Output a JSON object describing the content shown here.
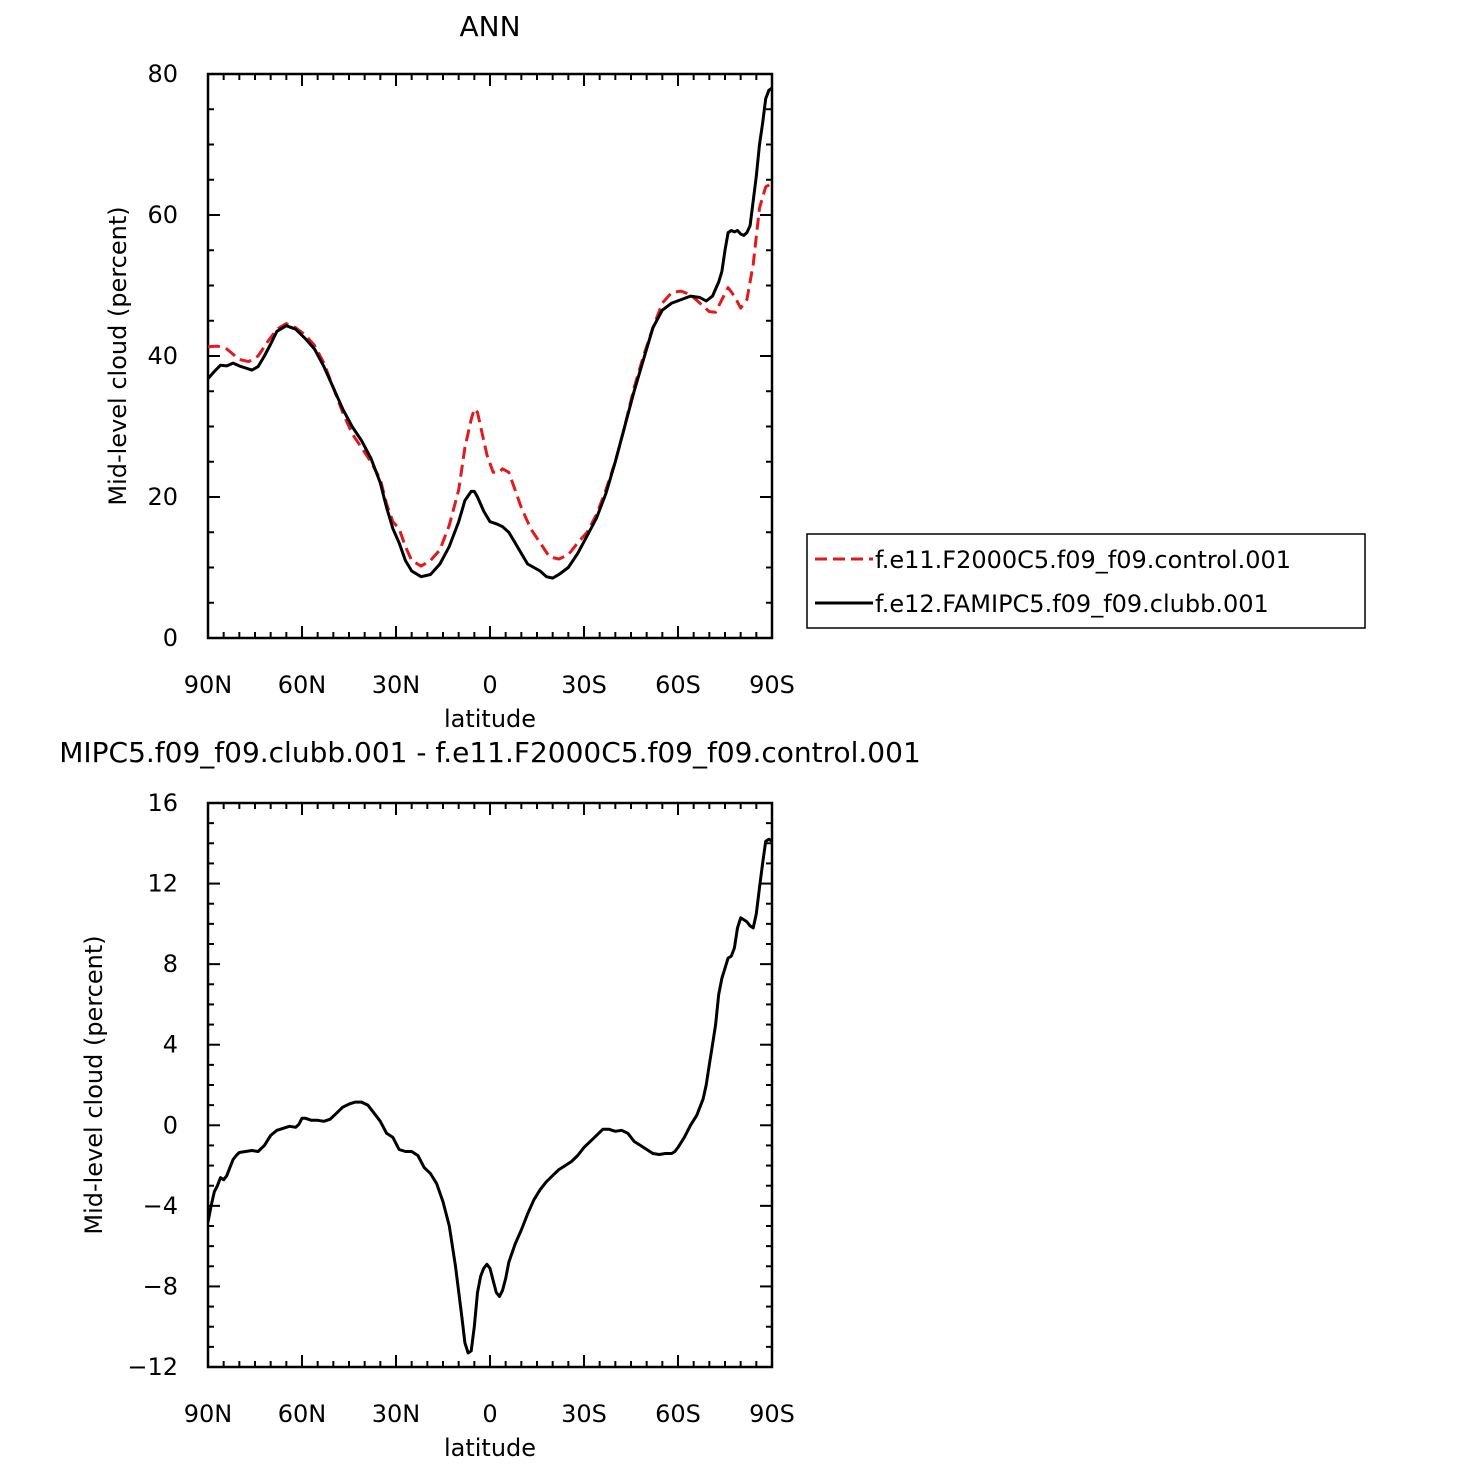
{
  "chart_data": [
    {
      "type": "line",
      "title": "ANN",
      "xlabel": "latitude",
      "ylabel": "Mid-level cloud (percent)",
      "x_tick_values": [
        -90,
        -60,
        -30,
        0,
        30,
        60,
        90
      ],
      "x_tick_labels": [
        "90N",
        "60N",
        "30N",
        "0",
        "30S",
        "60S",
        "90S"
      ],
      "xlim": [
        -90,
        90
      ],
      "ylim": [
        0,
        80
      ],
      "y_ticks": [
        0,
        20,
        40,
        60,
        80
      ],
      "y_tick_labels": [
        "0",
        "20",
        "40",
        "60",
        "80"
      ],
      "legend": "right",
      "grid": false,
      "series": [
        {
          "name": "f.e11.F2000C5.f09_f09.control.001",
          "color": "#e31a1c",
          "dash": "dashed",
          "points": [
            [
              -90,
              41.3
            ],
            [
              -87,
              41.4
            ],
            [
              -84,
              41
            ],
            [
              -80,
              39.5
            ],
            [
              -77,
              39.2
            ],
            [
              -74,
              40
            ],
            [
              -71,
              42
            ],
            [
              -68,
              43.8
            ],
            [
              -65,
              44.6
            ],
            [
              -62,
              44
            ],
            [
              -59,
              43
            ],
            [
              -56,
              41.5
            ],
            [
              -53,
              39
            ],
            [
              -50,
              35.5
            ],
            [
              -47,
              32
            ],
            [
              -44,
              29
            ],
            [
              -41,
              27
            ],
            [
              -38,
              25
            ],
            [
              -35,
              22.5
            ],
            [
              -33,
              19
            ],
            [
              -31,
              16.5
            ],
            [
              -29,
              15.5
            ],
            [
              -27,
              13
            ],
            [
              -25,
              11
            ],
            [
              -22,
              10.2
            ],
            [
              -19,
              11
            ],
            [
              -16,
              12.5
            ],
            [
              -13,
              16
            ],
            [
              -10,
              21
            ],
            [
              -8,
              27
            ],
            [
              -6,
              31
            ],
            [
              -5,
              32.5
            ],
            [
              -4,
              32
            ],
            [
              -3,
              30
            ],
            [
              -1,
              26
            ],
            [
              1,
              23.5
            ],
            [
              3,
              23.5
            ],
            [
              4,
              24
            ],
            [
              6,
              23.5
            ],
            [
              8,
              21
            ],
            [
              10,
              18.5
            ],
            [
              13,
              15.5
            ],
            [
              16,
              13.5
            ],
            [
              19,
              11.5
            ],
            [
              22,
              11.2
            ],
            [
              25,
              11.8
            ],
            [
              28,
              13.5
            ],
            [
              31,
              15
            ],
            [
              34,
              17.5
            ],
            [
              37,
              21
            ],
            [
              40,
              25
            ],
            [
              43,
              30
            ],
            [
              46,
              35.5
            ],
            [
              49,
              40
            ],
            [
              52,
              44
            ],
            [
              55,
              47.5
            ],
            [
              58,
              49
            ],
            [
              61,
              49.2
            ],
            [
              64,
              48.7
            ],
            [
              67,
              47.5
            ],
            [
              70,
              46.3
            ],
            [
              72,
              46.2
            ],
            [
              74,
              48
            ],
            [
              76,
              49.7
            ],
            [
              78,
              48.5
            ],
            [
              80,
              46.8
            ],
            [
              82,
              48
            ],
            [
              84,
              53
            ],
            [
              86,
              61
            ],
            [
              88,
              64
            ],
            [
              90,
              64.5
            ]
          ]
        },
        {
          "name": "f.e12.FAMIPC5.f09_f09.clubb.001",
          "color": "#000000",
          "dash": "solid",
          "points": [
            [
              -90,
              36.8
            ],
            [
              -88,
              37.8
            ],
            [
              -86,
              38.7
            ],
            [
              -84,
              38.6
            ],
            [
              -82,
              39
            ],
            [
              -80,
              38.6
            ],
            [
              -78,
              38.3
            ],
            [
              -76,
              38
            ],
            [
              -74,
              38.5
            ],
            [
              -72,
              40
            ],
            [
              -70,
              41.7
            ],
            [
              -68,
              43.5
            ],
            [
              -65,
              44.3
            ],
            [
              -62,
              43.8
            ],
            [
              -59,
              42.5
            ],
            [
              -56,
              41
            ],
            [
              -53,
              38.5
            ],
            [
              -50,
              35.5
            ],
            [
              -47,
              32.5
            ],
            [
              -44,
              30
            ],
            [
              -41,
              28
            ],
            [
              -38,
              25.5
            ],
            [
              -35,
              22
            ],
            [
              -33,
              18.5
            ],
            [
              -31,
              15.5
            ],
            [
              -29,
              13.5
            ],
            [
              -27,
              11
            ],
            [
              -25,
              9.5
            ],
            [
              -22,
              8.7
            ],
            [
              -19,
              9
            ],
            [
              -16,
              10.5
            ],
            [
              -13,
              13
            ],
            [
              -10,
              16.5
            ],
            [
              -8,
              19.5
            ],
            [
              -6,
              20.8
            ],
            [
              -5,
              20.8
            ],
            [
              -4,
              20
            ],
            [
              -2,
              18
            ],
            [
              0,
              16.5
            ],
            [
              2,
              16.2
            ],
            [
              4,
              15.8
            ],
            [
              6,
              15
            ],
            [
              8,
              13.5
            ],
            [
              10,
              12
            ],
            [
              12,
              10.5
            ],
            [
              14,
              10
            ],
            [
              16,
              9.5
            ],
            [
              18,
              8.7
            ],
            [
              20,
              8.5
            ],
            [
              22,
              9
            ],
            [
              25,
              10
            ],
            [
              28,
              12
            ],
            [
              31,
              14.5
            ],
            [
              34,
              17
            ],
            [
              37,
              20.5
            ],
            [
              40,
              25
            ],
            [
              43,
              30
            ],
            [
              46,
              35
            ],
            [
              49,
              39.5
            ],
            [
              52,
              44
            ],
            [
              55,
              46.5
            ],
            [
              58,
              47.5
            ],
            [
              61,
              48
            ],
            [
              64,
              48.5
            ],
            [
              67,
              48.3
            ],
            [
              69,
              47.8
            ],
            [
              71,
              48.5
            ],
            [
              73,
              50.5
            ],
            [
              74,
              52
            ],
            [
              75,
              55
            ],
            [
              76,
              57.5
            ],
            [
              77,
              57.8
            ],
            [
              78,
              57.6
            ],
            [
              79,
              57.8
            ],
            [
              80,
              57.3
            ],
            [
              81,
              57.1
            ],
            [
              82,
              57.5
            ],
            [
              83,
              58.5
            ],
            [
              84,
              62
            ],
            [
              85,
              65.5
            ],
            [
              86,
              70
            ],
            [
              87,
              73
            ],
            [
              88,
              76.5
            ],
            [
              89,
              77.7
            ],
            [
              90,
              78
            ]
          ]
        }
      ]
    },
    {
      "type": "line",
      "title": "MIPC5.f09_f09.clubb.001  -  f.e11.F2000C5.f09_f09.control.001",
      "xlabel": "latitude",
      "ylabel": "Mid-level cloud (percent)",
      "x_tick_values": [
        -90,
        -60,
        -30,
        0,
        30,
        60,
        90
      ],
      "x_tick_labels": [
        "90N",
        "60N",
        "30N",
        "0",
        "30S",
        "60S",
        "90S"
      ],
      "xlim": [
        -90,
        90
      ],
      "ylim": [
        -12,
        16
      ],
      "y_ticks": [
        -12,
        -8,
        -4,
        0,
        4,
        8,
        12,
        16
      ],
      "y_tick_labels": [
        "−12",
        "−8",
        "−4",
        "0",
        "4",
        "8",
        "12",
        "16"
      ],
      "grid": false,
      "series": [
        {
          "color": "#000000",
          "dash": "solid",
          "points": [
            [
              -90,
              -4.8
            ],
            [
              -89,
              -4
            ],
            [
              -88,
              -3.3
            ],
            [
              -87,
              -3
            ],
            [
              -86,
              -2.6
            ],
            [
              -85,
              -2.7
            ],
            [
              -84,
              -2.5
            ],
            [
              -83,
              -2.1
            ],
            [
              -82,
              -1.7
            ],
            [
              -81,
              -1.5
            ],
            [
              -80,
              -1.35
            ],
            [
              -78,
              -1.3
            ],
            [
              -76,
              -1.25
            ],
            [
              -74,
              -1.3
            ],
            [
              -72,
              -1
            ],
            [
              -70,
              -0.5
            ],
            [
              -68,
              -0.25
            ],
            [
              -66,
              -0.15
            ],
            [
              -64,
              -0.05
            ],
            [
              -62,
              -0.1
            ],
            [
              -61,
              0.05
            ],
            [
              -60,
              0.35
            ],
            [
              -59,
              0.35
            ],
            [
              -57,
              0.25
            ],
            [
              -55,
              0.25
            ],
            [
              -53,
              0.2
            ],
            [
              -51,
              0.3
            ],
            [
              -49,
              0.6
            ],
            [
              -47,
              0.9
            ],
            [
              -45,
              1.05
            ],
            [
              -43,
              1.15
            ],
            [
              -41,
              1.15
            ],
            [
              -39,
              1
            ],
            [
              -37,
              0.6
            ],
            [
              -35,
              0.2
            ],
            [
              -33,
              -0.4
            ],
            [
              -31,
              -0.6
            ],
            [
              -29,
              -1.2
            ],
            [
              -27,
              -1.3
            ],
            [
              -25,
              -1.3
            ],
            [
              -23,
              -1.5
            ],
            [
              -21,
              -2.1
            ],
            [
              -19,
              -2.4
            ],
            [
              -17,
              -2.9
            ],
            [
              -15,
              -3.8
            ],
            [
              -13,
              -5
            ],
            [
              -11,
              -7
            ],
            [
              -9,
              -9.5
            ],
            [
              -8,
              -10.8
            ],
            [
              -7,
              -11.3
            ],
            [
              -6,
              -11.2
            ],
            [
              -5,
              -10
            ],
            [
              -4,
              -8.3
            ],
            [
              -3,
              -7.5
            ],
            [
              -2,
              -7.1
            ],
            [
              -1,
              -6.9
            ],
            [
              0,
              -7.1
            ],
            [
              1,
              -7.7
            ],
            [
              2,
              -8.3
            ],
            [
              3,
              -8.5
            ],
            [
              4,
              -8.2
            ],
            [
              5,
              -7.6
            ],
            [
              6,
              -6.8
            ],
            [
              8,
              -5.9
            ],
            [
              10,
              -5.2
            ],
            [
              12,
              -4.4
            ],
            [
              14,
              -3.7
            ],
            [
              16,
              -3.2
            ],
            [
              18,
              -2.8
            ],
            [
              20,
              -2.5
            ],
            [
              22,
              -2.2
            ],
            [
              24,
              -2
            ],
            [
              26,
              -1.8
            ],
            [
              28,
              -1.5
            ],
            [
              30,
              -1.1
            ],
            [
              32,
              -0.8
            ],
            [
              34,
              -0.5
            ],
            [
              36,
              -0.2
            ],
            [
              38,
              -0.2
            ],
            [
              40,
              -0.3
            ],
            [
              42,
              -0.25
            ],
            [
              44,
              -0.4
            ],
            [
              46,
              -0.8
            ],
            [
              48,
              -1
            ],
            [
              50,
              -1.2
            ],
            [
              52,
              -1.4
            ],
            [
              54,
              -1.45
            ],
            [
              56,
              -1.4
            ],
            [
              58,
              -1.4
            ],
            [
              59,
              -1.3
            ],
            [
              60,
              -1.1
            ],
            [
              62,
              -0.6
            ],
            [
              64,
              0
            ],
            [
              66,
              0.5
            ],
            [
              68,
              1.3
            ],
            [
              69,
              2
            ],
            [
              70,
              3
            ],
            [
              71,
              4
            ],
            [
              72,
              5
            ],
            [
              73,
              6.5
            ],
            [
              74,
              7.3
            ],
            [
              75,
              7.8
            ],
            [
              76,
              8.3
            ],
            [
              77,
              8.4
            ],
            [
              78,
              8.8
            ],
            [
              79,
              9.8
            ],
            [
              80,
              10.3
            ],
            [
              81,
              10.2
            ],
            [
              82,
              10.1
            ],
            [
              83,
              9.9
            ],
            [
              84,
              9.8
            ],
            [
              85,
              10.5
            ],
            [
              86,
              11.8
            ],
            [
              87,
              13
            ],
            [
              88,
              14.1
            ],
            [
              89,
              14.2
            ],
            [
              90,
              14.1
            ]
          ]
        }
      ]
    }
  ]
}
